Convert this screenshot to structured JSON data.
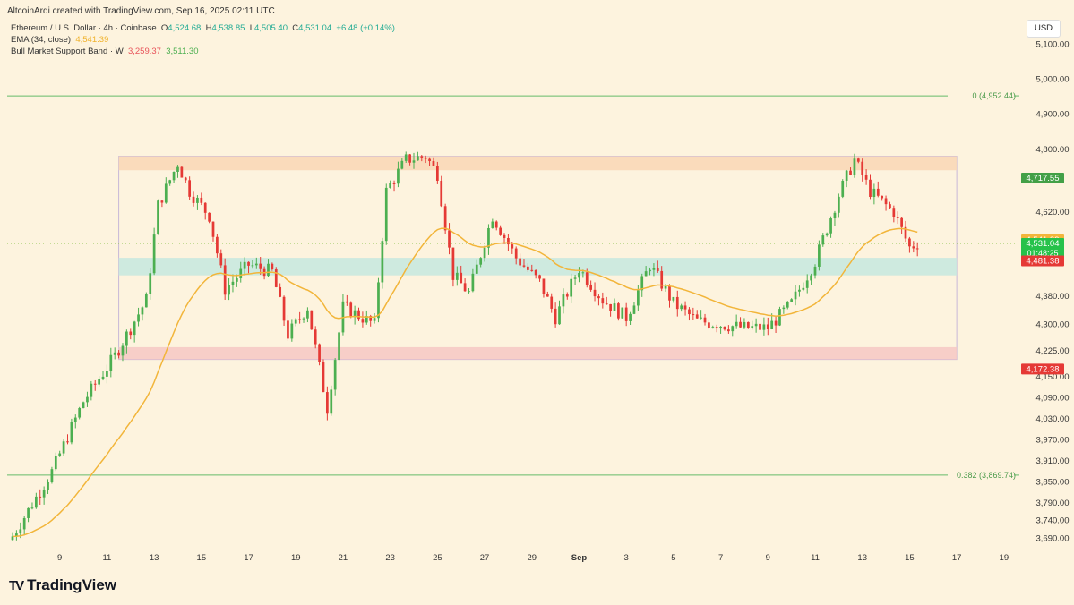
{
  "header": {
    "credit": "AltcoinArdi created with TradingView.com, Sep 16, 2025 02:11 UTC",
    "symbol": "Ethereum / U.S. Dollar · 4h · Coinbase",
    "ohlc": {
      "o_label": "O",
      "o": "4,524.68",
      "h_label": "H",
      "h": "4,538.85",
      "l_label": "L",
      "l": "4,505.40",
      "c_label": "C",
      "c": "4,531.04",
      "change": "+6.48 (+0.14%)"
    },
    "ema_label": "EMA (34, close)",
    "ema_value": "4,541.39",
    "bmsb_label": "Bull Market Support Band · W",
    "bmsb_value1": "3,259.37",
    "bmsb_value2": "3,511.30"
  },
  "currency_button": "USD",
  "footer": {
    "brand": "TradingView",
    "logo_mark": "TV"
  },
  "colors": {
    "background": "#fdf3de",
    "up": "#26a69a",
    "up_candle": "#4caf50",
    "down_candle": "#e53935",
    "ema": "#f2b53a",
    "fib_line": "#66bb6a",
    "resistance_zone": "#f9d6b5",
    "support_zone": "#f6c7c4",
    "mid_zone": "#c6e8df",
    "price_line": "#8bc34a"
  },
  "chart_data": {
    "type": "candlestick",
    "title": "Ethereum / U.S. Dollar · 4h · Coinbase",
    "ylim": [
      3660,
      5180
    ],
    "y_ticks": [
      5100,
      5000,
      4900,
      4800,
      4620,
      4380,
      4300,
      4225,
      4150,
      4090,
      4030,
      3970,
      3910,
      3850,
      3790,
      3740,
      3690
    ],
    "y_tick_labels": [
      "5,100.00",
      "5,000.00",
      "4,900.00",
      "4,800.00",
      "4,620.00",
      "4,380.00",
      "4,300.00",
      "4,225.00",
      "4,150.00",
      "4,090.00",
      "4,030.00",
      "3,970.00",
      "3,910.00",
      "3,850.00",
      "3,790.00",
      "3,740.00",
      "3,690.00"
    ],
    "x_tick_labels": [
      "9",
      "11",
      "13",
      "15",
      "17",
      "19",
      "21",
      "23",
      "25",
      "27",
      "29",
      "Sep",
      "3",
      "5",
      "7",
      "9",
      "11",
      "13",
      "15",
      "17",
      "19"
    ],
    "x_tick_bar_index": [
      12,
      24,
      36,
      48,
      60,
      72,
      84,
      96,
      108,
      120,
      132,
      144,
      156,
      168,
      180,
      192,
      204,
      216,
      228,
      240,
      252
    ],
    "close_path_keypoints": [
      [
        0,
        3695
      ],
      [
        10,
        3880
      ],
      [
        18,
        4080
      ],
      [
        26,
        4210
      ],
      [
        34,
        4370
      ],
      [
        37,
        4640
      ],
      [
        42,
        4760
      ],
      [
        45,
        4680
      ],
      [
        50,
        4610
      ],
      [
        54,
        4400
      ],
      [
        60,
        4470
      ],
      [
        66,
        4450
      ],
      [
        70,
        4270
      ],
      [
        75,
        4350
      ],
      [
        80,
        4060
      ],
      [
        84,
        4350
      ],
      [
        92,
        4300
      ],
      [
        95,
        4680
      ],
      [
        100,
        4770
      ],
      [
        105,
        4780
      ],
      [
        108,
        4730
      ],
      [
        112,
        4440
      ],
      [
        116,
        4390
      ],
      [
        122,
        4610
      ],
      [
        128,
        4490
      ],
      [
        134,
        4420
      ],
      [
        138,
        4320
      ],
      [
        144,
        4460
      ],
      [
        150,
        4370
      ],
      [
        156,
        4320
      ],
      [
        162,
        4470
      ],
      [
        168,
        4360
      ],
      [
        174,
        4310
      ],
      [
        180,
        4300
      ],
      [
        186,
        4290
      ],
      [
        192,
        4290
      ],
      [
        198,
        4360
      ],
      [
        204,
        4480
      ],
      [
        210,
        4670
      ],
      [
        214,
        4770
      ],
      [
        218,
        4680
      ],
      [
        224,
        4620
      ],
      [
        228,
        4520
      ],
      [
        230,
        4531
      ]
    ],
    "ema_34": {
      "name": "EMA (34, close)",
      "last": 4541.39
    },
    "zones": [
      {
        "kind": "resistance",
        "from_bar": 27,
        "to_bar": 240,
        "low": 4740,
        "high": 4780
      },
      {
        "kind": "mid",
        "from_bar": 27,
        "to_bar": 240,
        "low": 4440,
        "high": 4490
      },
      {
        "kind": "support",
        "from_bar": 27,
        "to_bar": 240,
        "low": 4200,
        "high": 4235
      }
    ],
    "fib_levels": [
      {
        "label": "0 (4,952.44)",
        "value": 4952.44
      },
      {
        "label": "0.382 (3,869.74)",
        "value": 3869.74
      }
    ],
    "price_tags": [
      {
        "value": 4717.55,
        "label": "4,717.55",
        "color": "#43a047"
      },
      {
        "value": 4541.39,
        "label": "4,541.39",
        "color": "#f2b53a"
      },
      {
        "value": 4531.04,
        "label": "4,531.04",
        "label2": "01:48:25",
        "color": "#26c24a"
      },
      {
        "value": 4481.38,
        "label": "4,481.38",
        "color": "#e53935"
      },
      {
        "value": 4172.38,
        "label": "4,172.38",
        "color": "#e53935"
      }
    ],
    "last_price": 4531.04
  }
}
